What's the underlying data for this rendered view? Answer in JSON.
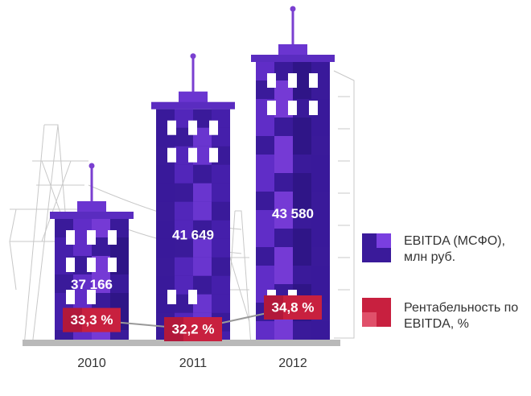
{
  "chart_data": {
    "type": "bar",
    "categories": [
      "2010",
      "2011",
      "2012"
    ],
    "series": [
      {
        "name": "EBITDA (МСФО), млн руб.",
        "type": "bar",
        "color": "#3a1a9a",
        "values": [
          37166,
          41649,
          43580
        ],
        "value_labels": [
          "37 166",
          "41 649",
          "43 580"
        ]
      },
      {
        "name": "Рентабельность по EBITDA, %",
        "type": "line",
        "color": "#c8203f",
        "values": [
          33.3,
          32.2,
          34.8
        ],
        "value_labels": [
          "33,3 %",
          "32,2 %",
          "34,8 %"
        ]
      }
    ]
  }
}
